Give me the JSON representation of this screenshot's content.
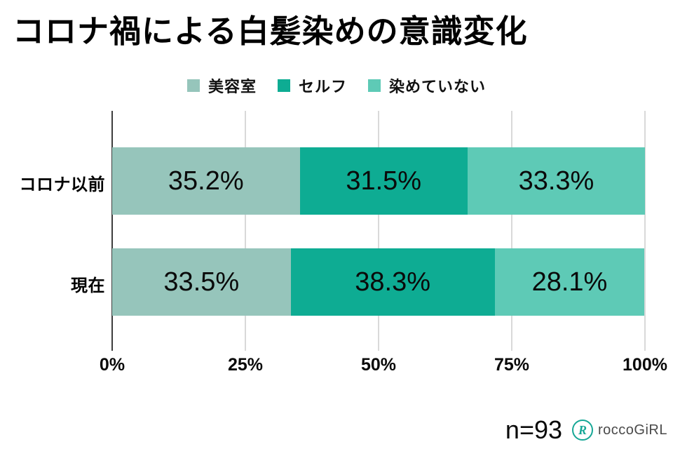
{
  "title": "コロナ禍による白髪染めの意識変化",
  "chart_data": {
    "type": "bar",
    "orientation": "horizontal",
    "stacked": true,
    "categories": [
      "コロナ以前",
      "現在"
    ],
    "series": [
      {
        "name": "美容室",
        "color": "#96c5bb",
        "values": [
          35.2,
          33.5
        ]
      },
      {
        "name": "セルフ",
        "color": "#0eac93",
        "values": [
          31.5,
          38.3
        ]
      },
      {
        "name": "染めていない",
        "color": "#5ecab6",
        "values": [
          33.3,
          28.1
        ]
      }
    ],
    "value_suffix": "%",
    "x_ticks": [
      "0%",
      "25%",
      "50%",
      "75%",
      "100%"
    ],
    "xlim": [
      0,
      100
    ],
    "grid": true,
    "legend_position": "top"
  },
  "colors": {
    "axis_line": "#3d3d3d",
    "gridline": "#d9d9d9",
    "label_text": "#0a0a0a",
    "brand_teal": "#16a796"
  },
  "footer": {
    "sample_size": "n=93",
    "brand": "roccoGiRL",
    "brand_icon": "R"
  }
}
